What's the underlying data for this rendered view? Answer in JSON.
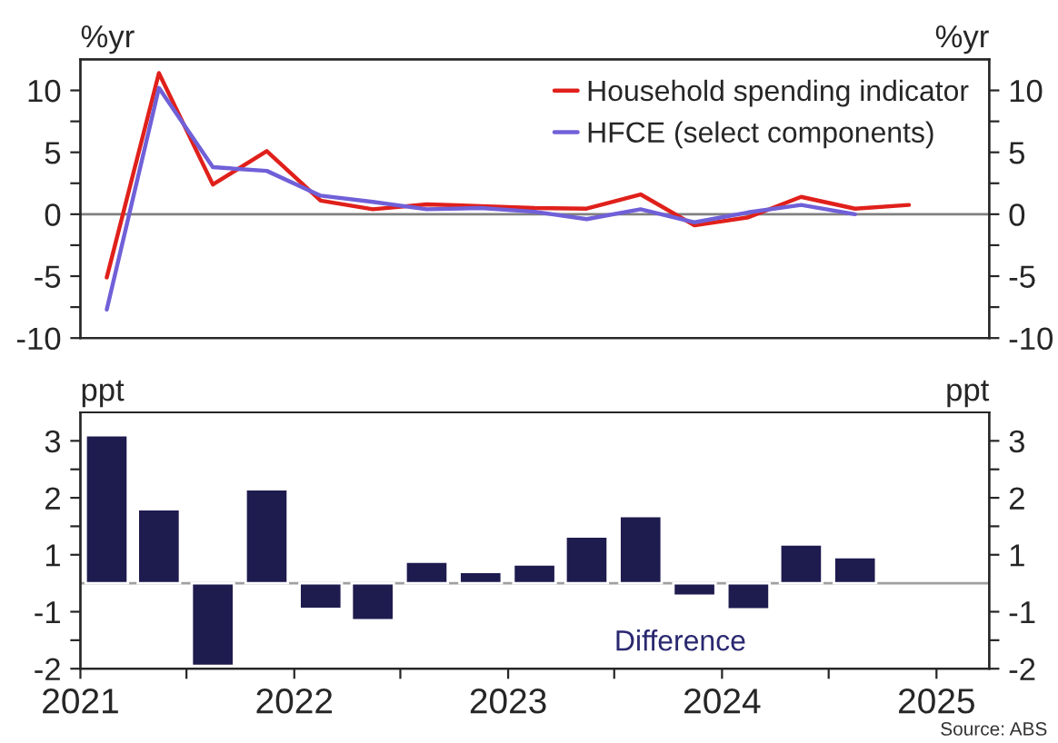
{
  "chart_data": [
    {
      "type": "line",
      "ylabel": "%yr",
      "y2label": "%yr",
      "xlim": [
        "2021",
        "2025-04"
      ],
      "ylim": [
        -10,
        12.5
      ],
      "yticks": [
        -10,
        {
          "value": -7.5,
          "label": null
        },
        -5,
        {
          "value": -2.5,
          "label": null
        },
        0,
        {
          "value": 2.5,
          "label": null
        },
        5,
        {
          "value": 7.5,
          "label": null
        },
        10
      ],
      "y2lim": [
        -10,
        12.5
      ],
      "y2ticks": [
        -10,
        {
          "value": -7.5,
          "label": null
        },
        -5,
        {
          "value": -2.5,
          "label": null
        },
        0,
        {
          "value": 2.5,
          "label": null
        },
        5,
        {
          "value": 7.5,
          "label": null
        },
        10
      ],
      "tick_labels": "y",
      "legend": "top right",
      "grid": false,
      "line_style": "solid",
      "marker": "none",
      "ref_lines": [
        {
          "axis": "y",
          "value": 0,
          "color": "#808080"
        }
      ],
      "series": [
        {
          "name": "Household spending indicator",
          "color": "#e0201b",
          "x": [
            "2021-02-15",
            "2021-05-15",
            "2021-08-15",
            "2021-11-15",
            "2022-02-15",
            "2022-05-15",
            "2022-08-15",
            "2022-11-15",
            "2023-02-15",
            "2023-05-15",
            "2023-08-15",
            "2023-11-15",
            "2024-02-15",
            "2024-05-15",
            "2024-08-15",
            "2024-11-15"
          ],
          "values": [
            -5.1,
            11.4,
            2.4,
            5.1,
            1.1,
            0.4,
            0.8,
            0.65,
            0.5,
            0.45,
            1.6,
            -0.9,
            -0.25,
            1.4,
            0.45,
            0.75
          ]
        },
        {
          "name": "HFCE (select components)",
          "color": "#7060d8",
          "x": [
            "2021-02-15",
            "2021-05-15",
            "2021-08-15",
            "2021-11-15",
            "2022-02-15",
            "2022-05-15",
            "2022-08-15",
            "2022-11-15",
            "2023-02-15",
            "2023-05-15",
            "2023-08-15",
            "2023-11-15",
            "2024-02-15",
            "2024-05-15",
            "2024-08-15"
          ],
          "values": [
            -7.7,
            10.2,
            3.8,
            3.5,
            1.5,
            1.0,
            0.4,
            0.5,
            0.2,
            -0.4,
            0.4,
            -0.65,
            0.15,
            0.75,
            0.0
          ]
        }
      ]
    },
    {
      "type": "bar",
      "ylabel": "ppt",
      "y2label": "ppt",
      "xlim": [
        "2021",
        "2025-04"
      ],
      "xticks": [
        {
          "value": "2021",
          "label": "2021"
        },
        {
          "value": "2021-07",
          "label": null
        },
        {
          "value": "2022",
          "label": "2022"
        },
        {
          "value": "2022-07",
          "label": null
        },
        {
          "value": "2023",
          "label": "2023"
        },
        {
          "value": "2023-07",
          "label": null
        },
        {
          "value": "2024",
          "label": "2024"
        },
        {
          "value": "2024-07",
          "label": null
        },
        {
          "value": "2025",
          "label": "2025"
        }
      ],
      "ylim": [
        -1.5,
        3.0
      ],
      "yticks": [
        {
          "value": -1.5,
          "label": "-2"
        },
        {
          "value": -1.0,
          "label": null
        },
        {
          "value": -0.5,
          "label": "-1"
        },
        {
          "value": 0.5,
          "label": "1"
        },
        {
          "value": 1.0,
          "label": null
        },
        {
          "value": 1.5,
          "label": "2"
        },
        {
          "value": 2.0,
          "label": null
        },
        {
          "value": 2.5,
          "label": "3"
        }
      ],
      "y2lim": [
        -1.5,
        3.0
      ],
      "y2ticks": [
        {
          "value": -1.5,
          "label": "-2"
        },
        {
          "value": -1.0,
          "label": null
        },
        {
          "value": -0.5,
          "label": "-1"
        },
        {
          "value": 0.5,
          "label": "1"
        },
        {
          "value": 1.0,
          "label": null
        },
        {
          "value": 1.5,
          "label": "2"
        },
        {
          "value": 2.0,
          "label": null
        },
        {
          "value": 2.5,
          "label": "3"
        }
      ],
      "grid": false,
      "legend": false,
      "ref_lines": [
        {
          "axis": "y",
          "value": 0,
          "color": "#a0a0a0"
        }
      ],
      "annotations": [
        "Difference",
        "Source: ABS"
      ],
      "series": [
        {
          "color": "#1e1b4f",
          "x": [
            "2021-02-15",
            "2021-05-15",
            "2021-08-15",
            "2021-11-15",
            "2022-02-15",
            "2022-05-15",
            "2022-08-15",
            "2022-11-15",
            "2023-02-15",
            "2023-05-15",
            "2023-08-15",
            "2023-11-15",
            "2024-02-15",
            "2024-05-15",
            "2024-08-15"
          ],
          "values": [
            2.6,
            1.3,
            -1.45,
            1.65,
            -0.45,
            -0.65,
            0.38,
            0.2,
            0.33,
            0.82,
            1.18,
            -0.22,
            -0.46,
            0.68,
            0.46
          ]
        }
      ]
    }
  ]
}
